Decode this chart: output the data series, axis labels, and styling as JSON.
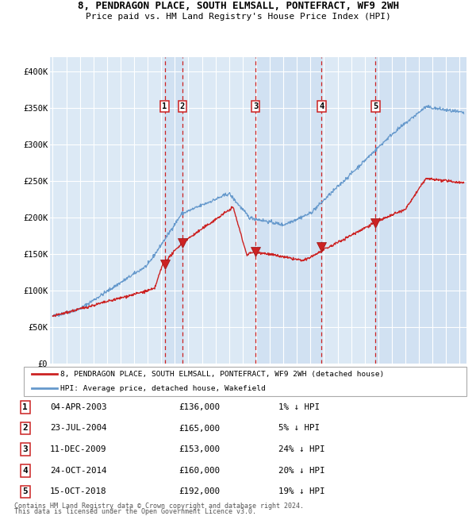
{
  "title1": "8, PENDRAGON PLACE, SOUTH ELMSALL, PONTEFRACT, WF9 2WH",
  "title2": "Price paid vs. HM Land Registry's House Price Index (HPI)",
  "background_color": "#ffffff",
  "plot_bg_color": "#dce9f5",
  "grid_color": "#ffffff",
  "hpi_line_color": "#6699cc",
  "price_line_color": "#cc2222",
  "sale_marker_color": "#cc2222",
  "vline_color_red": "#cc2222",
  "shade_color": "#c8dcf0",
  "transactions": [
    {
      "num": 1,
      "date_label": "04-APR-2003",
      "date_x": 2003.25,
      "price": 136000,
      "pct": "1%"
    },
    {
      "num": 2,
      "date_label": "23-JUL-2004",
      "date_x": 2004.55,
      "price": 165000,
      "pct": "5%"
    },
    {
      "num": 3,
      "date_label": "11-DEC-2009",
      "date_x": 2009.95,
      "price": 153000,
      "pct": "24%"
    },
    {
      "num": 4,
      "date_label": "24-OCT-2014",
      "date_x": 2014.82,
      "price": 160000,
      "pct": "20%"
    },
    {
      "num": 5,
      "date_label": "15-OCT-2018",
      "date_x": 2018.8,
      "price": 192000,
      "pct": "19%"
    }
  ],
  "xlim": [
    1994.8,
    2025.5
  ],
  "ylim": [
    0,
    420000
  ],
  "yticks": [
    0,
    50000,
    100000,
    150000,
    200000,
    250000,
    300000,
    350000,
    400000
  ],
  "ytick_labels": [
    "£0",
    "£50K",
    "£100K",
    "£150K",
    "£200K",
    "£250K",
    "£300K",
    "£350K",
    "£400K"
  ],
  "xticks": [
    1995,
    1996,
    1997,
    1998,
    1999,
    2000,
    2001,
    2002,
    2003,
    2004,
    2005,
    2006,
    2007,
    2008,
    2009,
    2010,
    2011,
    2012,
    2013,
    2014,
    2015,
    2016,
    2017,
    2018,
    2019,
    2020,
    2021,
    2022,
    2023,
    2024,
    2025
  ],
  "footer1": "Contains HM Land Registry data © Crown copyright and database right 2024.",
  "footer2": "This data is licensed under the Open Government Licence v3.0.",
  "legend_label1": "8, PENDRAGON PLACE, SOUTH ELMSALL, PONTEFRACT, WF9 2WH (detached house)",
  "legend_label2": "HPI: Average price, detached house, Wakefield"
}
